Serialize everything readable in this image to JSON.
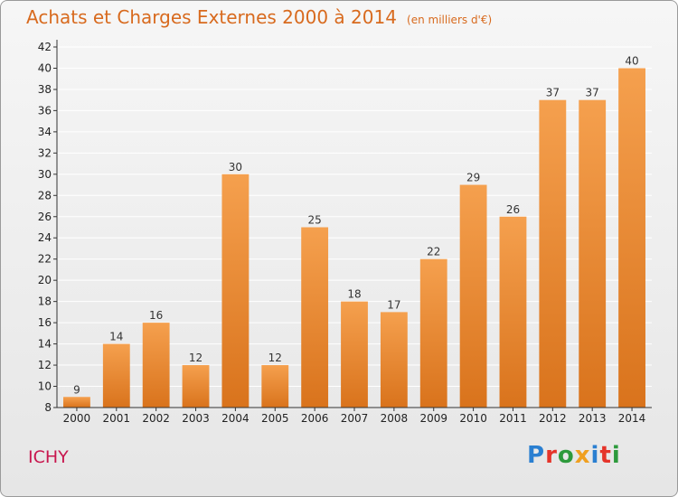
{
  "header": {
    "title": "Achats et Charges Externes 2000 à 2014",
    "unit": "(en milliers d'€)"
  },
  "commune": "ICHY",
  "logo": {
    "text": "Proxiti",
    "letter_colors": [
      "#2a7fd1",
      "#e5342a",
      "#2d9a3c",
      "#f0a020",
      "#2a7fd1",
      "#e5342a",
      "#2d9a3c"
    ]
  },
  "chart_data": {
    "type": "bar",
    "categories": [
      "2000",
      "2001",
      "2002",
      "2003",
      "2004",
      "2005",
      "2006",
      "2007",
      "2008",
      "2009",
      "2010",
      "2011",
      "2012",
      "2013",
      "2014"
    ],
    "values": [
      9,
      14,
      16,
      12,
      30,
      12,
      25,
      18,
      17,
      22,
      29,
      26,
      37,
      37,
      40
    ],
    "ylim": [
      8,
      42
    ],
    "yticks": [
      8,
      10,
      12,
      14,
      16,
      18,
      20,
      22,
      24,
      26,
      28,
      30,
      32,
      34,
      36,
      38,
      40,
      42
    ],
    "grid": true,
    "colors": {
      "bar_light": "#f5a04e",
      "bar_dark": "#d9731c",
      "grid": "#ffffff",
      "axis": "#333333"
    }
  }
}
